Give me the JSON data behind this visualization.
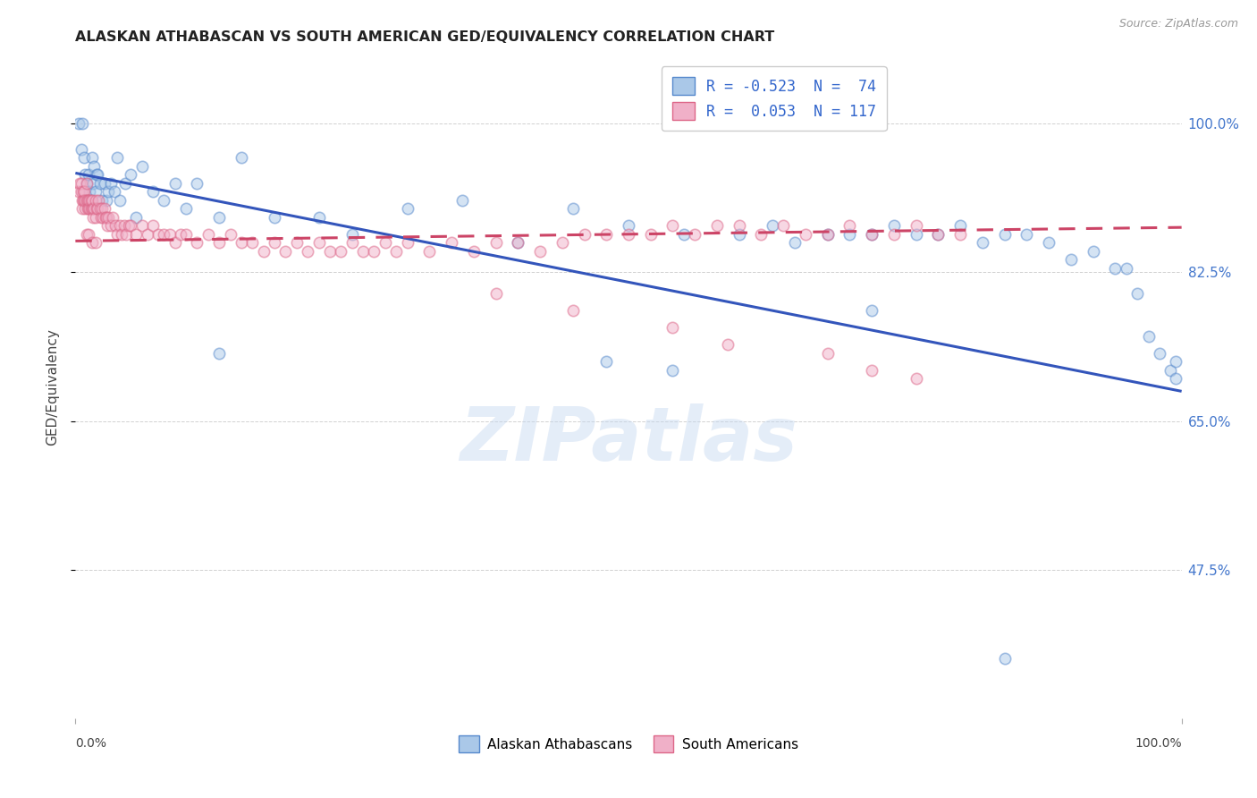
{
  "title": "ALASKAN ATHABASCAN VS SOUTH AMERICAN GED/EQUIVALENCY CORRELATION CHART",
  "source": "Source: ZipAtlas.com",
  "ylabel": "GED/Equivalency",
  "xlim": [
    0.0,
    1.0
  ],
  "ylim": [
    0.3,
    1.08
  ],
  "yticks": [
    0.475,
    0.65,
    0.825,
    1.0
  ],
  "ytick_labels": [
    "47.5%",
    "65.0%",
    "82.5%",
    "100.0%"
  ],
  "xtick_left": "0.0%",
  "xtick_right": "100.0%",
  "legend_line1": "R = -0.523  N =  74",
  "legend_line2": "R =  0.053  N = 117",
  "legend_label1": "Alaskan Athabascans",
  "legend_label2": "South Americans",
  "blue_face": "#aac8e8",
  "blue_edge": "#5588cc",
  "pink_face": "#f0b0c8",
  "pink_edge": "#dd6688",
  "blue_line_color": "#3355bb",
  "pink_line_color": "#cc4466",
  "watermark": "ZIPatlas",
  "bg": "#ffffff",
  "grid_color": "#cccccc",
  "ms": 80,
  "alpha": 0.5,
  "blue_trend_x": [
    0.0,
    1.0
  ],
  "blue_trend_y": [
    0.942,
    0.685
  ],
  "pink_trend_x": [
    0.0,
    1.0
  ],
  "pink_trend_y": [
    0.862,
    0.878
  ],
  "blue_x": [
    0.003,
    0.005,
    0.006,
    0.008,
    0.009,
    0.01,
    0.011,
    0.012,
    0.013,
    0.014,
    0.015,
    0.016,
    0.017,
    0.018,
    0.019,
    0.02,
    0.022,
    0.024,
    0.026,
    0.028,
    0.03,
    0.032,
    0.035,
    0.038,
    0.04,
    0.045,
    0.05,
    0.055,
    0.06,
    0.07,
    0.08,
    0.09,
    0.1,
    0.11,
    0.13,
    0.15,
    0.18,
    0.22,
    0.25,
    0.3,
    0.35,
    0.4,
    0.45,
    0.5,
    0.55,
    0.6,
    0.63,
    0.65,
    0.68,
    0.7,
    0.72,
    0.74,
    0.76,
    0.78,
    0.8,
    0.82,
    0.84,
    0.86,
    0.88,
    0.9,
    0.92,
    0.94,
    0.95,
    0.96,
    0.97,
    0.98,
    0.99,
    0.995,
    0.995,
    0.13,
    0.48,
    0.54,
    0.72,
    0.84
  ],
  "blue_y": [
    1.0,
    0.97,
    1.0,
    0.96,
    0.94,
    0.93,
    0.91,
    0.94,
    0.92,
    0.91,
    0.96,
    0.93,
    0.95,
    0.92,
    0.94,
    0.94,
    0.93,
    0.91,
    0.93,
    0.91,
    0.92,
    0.93,
    0.92,
    0.96,
    0.91,
    0.93,
    0.94,
    0.89,
    0.95,
    0.92,
    0.91,
    0.93,
    0.9,
    0.93,
    0.89,
    0.96,
    0.89,
    0.89,
    0.87,
    0.9,
    0.91,
    0.86,
    0.9,
    0.88,
    0.87,
    0.87,
    0.88,
    0.86,
    0.87,
    0.87,
    0.87,
    0.88,
    0.87,
    0.87,
    0.88,
    0.86,
    0.87,
    0.87,
    0.86,
    0.84,
    0.85,
    0.83,
    0.83,
    0.8,
    0.75,
    0.73,
    0.71,
    0.7,
    0.72,
    0.73,
    0.72,
    0.71,
    0.78,
    0.37
  ],
  "pink_x": [
    0.003,
    0.004,
    0.005,
    0.005,
    0.006,
    0.006,
    0.007,
    0.007,
    0.008,
    0.008,
    0.009,
    0.009,
    0.01,
    0.01,
    0.011,
    0.011,
    0.012,
    0.012,
    0.013,
    0.013,
    0.014,
    0.014,
    0.015,
    0.015,
    0.016,
    0.016,
    0.017,
    0.018,
    0.018,
    0.019,
    0.02,
    0.021,
    0.022,
    0.023,
    0.024,
    0.025,
    0.026,
    0.027,
    0.028,
    0.029,
    0.03,
    0.032,
    0.034,
    0.036,
    0.038,
    0.04,
    0.042,
    0.044,
    0.046,
    0.048,
    0.05,
    0.055,
    0.06,
    0.065,
    0.07,
    0.075,
    0.08,
    0.085,
    0.09,
    0.095,
    0.1,
    0.11,
    0.12,
    0.13,
    0.14,
    0.15,
    0.16,
    0.17,
    0.18,
    0.19,
    0.2,
    0.21,
    0.22,
    0.23,
    0.24,
    0.25,
    0.26,
    0.27,
    0.28,
    0.29,
    0.3,
    0.32,
    0.34,
    0.36,
    0.38,
    0.4,
    0.42,
    0.44,
    0.46,
    0.48,
    0.5,
    0.52,
    0.54,
    0.56,
    0.58,
    0.6,
    0.62,
    0.64,
    0.66,
    0.68,
    0.7,
    0.72,
    0.74,
    0.76,
    0.78,
    0.8,
    0.01,
    0.012,
    0.015,
    0.018,
    0.38,
    0.45,
    0.54,
    0.59,
    0.68,
    0.72,
    0.76
  ],
  "pink_y": [
    0.92,
    0.93,
    0.92,
    0.93,
    0.91,
    0.9,
    0.92,
    0.91,
    0.91,
    0.92,
    0.9,
    0.91,
    0.91,
    0.93,
    0.91,
    0.9,
    0.91,
    0.9,
    0.9,
    0.91,
    0.9,
    0.91,
    0.9,
    0.91,
    0.9,
    0.89,
    0.9,
    0.89,
    0.91,
    0.9,
    0.9,
    0.91,
    0.9,
    0.89,
    0.9,
    0.89,
    0.9,
    0.89,
    0.89,
    0.88,
    0.89,
    0.88,
    0.89,
    0.88,
    0.87,
    0.88,
    0.87,
    0.88,
    0.87,
    0.88,
    0.88,
    0.87,
    0.88,
    0.87,
    0.88,
    0.87,
    0.87,
    0.87,
    0.86,
    0.87,
    0.87,
    0.86,
    0.87,
    0.86,
    0.87,
    0.86,
    0.86,
    0.85,
    0.86,
    0.85,
    0.86,
    0.85,
    0.86,
    0.85,
    0.85,
    0.86,
    0.85,
    0.85,
    0.86,
    0.85,
    0.86,
    0.85,
    0.86,
    0.85,
    0.86,
    0.86,
    0.85,
    0.86,
    0.87,
    0.87,
    0.87,
    0.87,
    0.88,
    0.87,
    0.88,
    0.88,
    0.87,
    0.88,
    0.87,
    0.87,
    0.88,
    0.87,
    0.87,
    0.88,
    0.87,
    0.87,
    0.87,
    0.87,
    0.86,
    0.86,
    0.8,
    0.78,
    0.76,
    0.74,
    0.73,
    0.71,
    0.7
  ]
}
